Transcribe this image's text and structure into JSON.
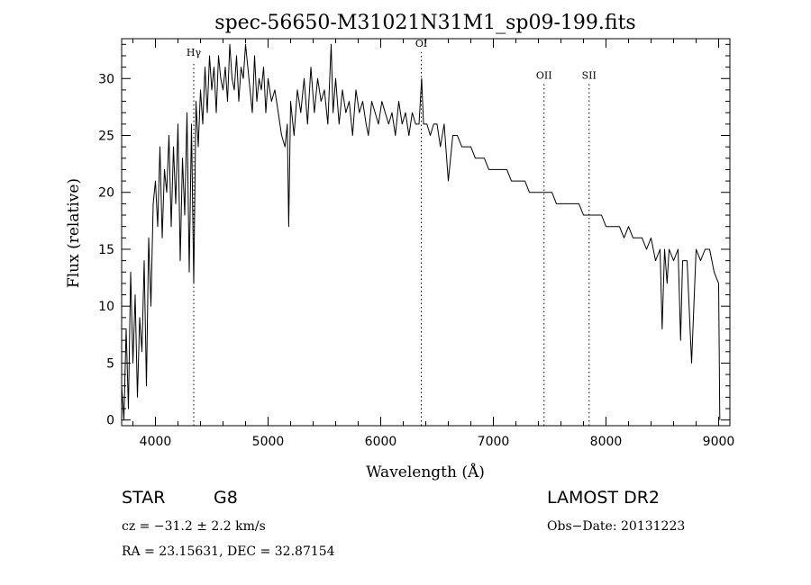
{
  "chart_data": {
    "type": "line",
    "title": "spec-56650-M31021N31M1_sp09-199.fits",
    "xlabel": "Wavelength (Å)",
    "ylabel": "Flux (relative)",
    "xlim": [
      3700,
      9100
    ],
    "ylim": [
      -0.5,
      33.5
    ],
    "xticks": [
      4000,
      5000,
      6000,
      7000,
      8000,
      9000
    ],
    "yticks": [
      0,
      5,
      10,
      15,
      20,
      25,
      30
    ],
    "grid": false,
    "legend": "none",
    "line_color": "#000000",
    "spectral_lines": [
      {
        "label": "Hγ",
        "x": 4340,
        "label_y": 32.0
      },
      {
        "label": "OI",
        "x": 6360,
        "label_y": 32.8
      },
      {
        "label": "OII",
        "x": 7450,
        "label_y": 30.0
      },
      {
        "label": "SII",
        "x": 7850,
        "label_y": 30.0
      }
    ],
    "series": [
      {
        "x": [
          3700,
          3720,
          3740,
          3760,
          3780,
          3800,
          3820,
          3840,
          3860,
          3880,
          3900,
          3920,
          3940,
          3960,
          3980,
          4000,
          4020,
          4040,
          4060,
          4080,
          4100,
          4120,
          4140,
          4160,
          4180,
          4200,
          4220,
          4240,
          4260,
          4280,
          4300,
          4320,
          4340,
          4360,
          4380,
          4400,
          4420,
          4440,
          4460,
          4480,
          4500,
          4520,
          4540,
          4560,
          4580,
          4600,
          4620,
          4640,
          4660,
          4680,
          4700,
          4720,
          4740,
          4760,
          4780,
          4800,
          4820,
          4840,
          4860,
          4880,
          4900,
          4920,
          4940,
          4960,
          4980,
          5000,
          5030,
          5060,
          5090,
          5120,
          5150,
          5170,
          5183,
          5200,
          5230,
          5260,
          5290,
          5320,
          5350,
          5380,
          5410,
          5440,
          5470,
          5500,
          5530,
          5560,
          5577,
          5600,
          5630,
          5660,
          5690,
          5720,
          5750,
          5780,
          5810,
          5840,
          5870,
          5890,
          5920,
          5950,
          5980,
          6010,
          6040,
          6070,
          6100,
          6130,
          6160,
          6190,
          6220,
          6250,
          6280,
          6310,
          6340,
          6363,
          6380,
          6410,
          6440,
          6470,
          6500,
          6530,
          6563,
          6600,
          6640,
          6680,
          6720,
          6760,
          6800,
          6840,
          6880,
          6920,
          6960,
          7000,
          7040,
          7080,
          7120,
          7160,
          7200,
          7240,
          7280,
          7320,
          7360,
          7400,
          7440,
          7480,
          7520,
          7560,
          7600,
          7640,
          7680,
          7720,
          7760,
          7800,
          7840,
          7880,
          7920,
          7960,
          8000,
          8040,
          8080,
          8120,
          8160,
          8200,
          8240,
          8280,
          8320,
          8360,
          8400,
          8440,
          8480,
          8498,
          8520,
          8542,
          8560,
          8600,
          8640,
          8662,
          8680,
          8720,
          8760,
          8800,
          8840,
          8880,
          8920,
          8960,
          9000,
          9010
        ],
        "y": [
          3,
          0,
          8,
          1,
          13,
          5,
          11,
          2,
          9,
          6,
          14,
          3,
          16,
          10,
          19,
          21,
          17,
          24,
          16,
          22,
          20,
          25,
          17,
          24,
          19,
          26,
          14,
          23,
          18,
          27,
          13,
          26,
          12,
          28,
          24,
          29,
          26,
          31,
          27,
          32,
          29,
          31,
          27,
          32,
          30,
          29,
          31,
          28,
          33,
          30,
          29,
          32,
          28,
          31,
          30,
          33,
          31,
          29,
          27,
          32,
          28,
          30,
          29,
          31,
          27,
          30,
          28,
          29,
          27,
          25,
          24,
          26,
          17,
          28,
          25,
          29,
          27,
          30,
          26,
          31,
          27,
          30,
          28,
          29,
          26,
          33,
          27,
          30,
          26,
          29,
          27,
          28,
          25,
          29,
          27,
          28,
          26,
          25,
          28,
          27,
          26,
          28,
          27,
          26,
          27,
          25,
          28,
          26,
          27,
          25,
          27,
          26,
          26,
          30,
          26,
          26,
          25,
          26,
          26,
          24,
          26,
          21,
          25,
          25,
          24,
          24,
          24,
          23,
          23,
          23,
          22,
          22,
          22,
          22,
          22,
          21,
          21,
          21,
          21,
          20,
          20,
          20,
          20,
          20,
          20,
          19,
          19,
          19,
          19,
          19,
          19,
          18,
          18,
          18,
          18,
          18,
          17,
          17,
          17,
          17,
          16,
          17,
          16,
          16,
          16,
          15,
          16,
          14,
          15,
          8,
          15,
          12,
          15,
          14,
          15,
          7,
          14,
          14,
          5,
          15,
          14,
          15,
          15,
          13,
          12,
          0
        ]
      }
    ]
  },
  "footer": {
    "object_class": "STAR",
    "subclass": "G8",
    "survey": "LAMOST DR2",
    "cz": "cz = −31.2 ± 2.2 km/s",
    "obs_date": "Obs−Date: 20131223",
    "radec": "RA =  23.15631, DEC =  32.87154"
  }
}
